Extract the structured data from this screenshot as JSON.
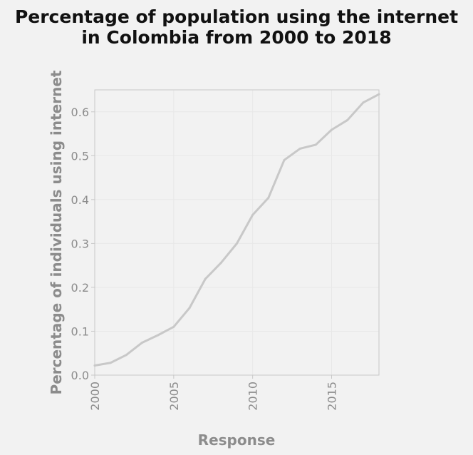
{
  "chart_data": {
    "type": "line",
    "title_lines": [
      "Percentage of population using the internet",
      "in Colombia from 2000 to 2018"
    ],
    "xlabel": "Response",
    "ylabel": "Percentage of individuals using internet",
    "xlim": [
      2000,
      2018
    ],
    "ylim": [
      0,
      0.65
    ],
    "x_ticks": [
      2000,
      2005,
      2010,
      2015
    ],
    "y_ticks": [
      "0.0",
      "0.1",
      "0.2",
      "0.3",
      "0.4",
      "0.5",
      "0.6"
    ],
    "grid": true,
    "series": [
      {
        "color": "#c8c8c8",
        "x": [
          2000,
          2001,
          2002,
          2003,
          2004,
          2005,
          2006,
          2007,
          2008,
          2009,
          2010,
          2011,
          2012,
          2013,
          2014,
          2015,
          2016,
          2017,
          2018
        ],
        "y": [
          0.022,
          0.028,
          0.046,
          0.074,
          0.091,
          0.11,
          0.153,
          0.219,
          0.256,
          0.3,
          0.365,
          0.404,
          0.49,
          0.516,
          0.525,
          0.559,
          0.581,
          0.621,
          0.64
        ]
      }
    ]
  },
  "colors": {
    "background": "#f2f2f2",
    "plot_background": "#f2f2f2",
    "axis": "#c8c8c8",
    "grid": "#e8e8e8",
    "line": "#c8c8c8",
    "title": "#111111",
    "label": "#8c8c8c"
  }
}
